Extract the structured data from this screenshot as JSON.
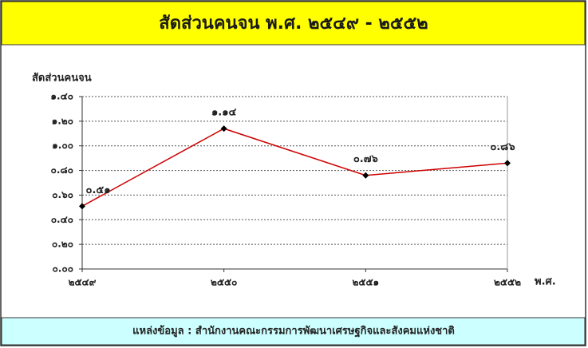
{
  "chart_data": {
    "type": "line",
    "title": "สัดส่วนคนจน พ.ศ. ๒๕๔๙ - ๒๕๕๒",
    "y_label": "สัดส่วนคนจน",
    "x_label": "พ.ศ.",
    "source": "แหล่งข้อมูล : สำนักงานคณะกรรมการพัฒนาเศรษฐกิจและสังคมแห่งชาติ",
    "categories": [
      "๒๕๔๙",
      "๒๕๕๐",
      "๒๕๕๑",
      "๒๕๕๒"
    ],
    "values": [
      0.51,
      1.14,
      0.76,
      0.86
    ],
    "value_labels": [
      "๐.๕๑",
      "๑.๑๔",
      "๐.๗๖",
      "๐.๘๖"
    ],
    "color": "#cc0000",
    "ylim": [
      0,
      1.4
    ],
    "yticks": [
      {
        "value": 0,
        "label": "๐.๐๐"
      },
      {
        "value": 0.2,
        "label": "๐.๒๐"
      },
      {
        "value": 0.4,
        "label": "๐.๔๐"
      },
      {
        "value": 0.6,
        "label": "๐.๖๐"
      },
      {
        "value": 0.8,
        "label": "๐.๘๐"
      },
      {
        "value": 1.0,
        "label": "๑.๐๐"
      },
      {
        "value": 1.2,
        "label": "๑.๒๐"
      },
      {
        "value": 1.4,
        "label": "๑.๔๐"
      }
    ],
    "grid": true
  }
}
